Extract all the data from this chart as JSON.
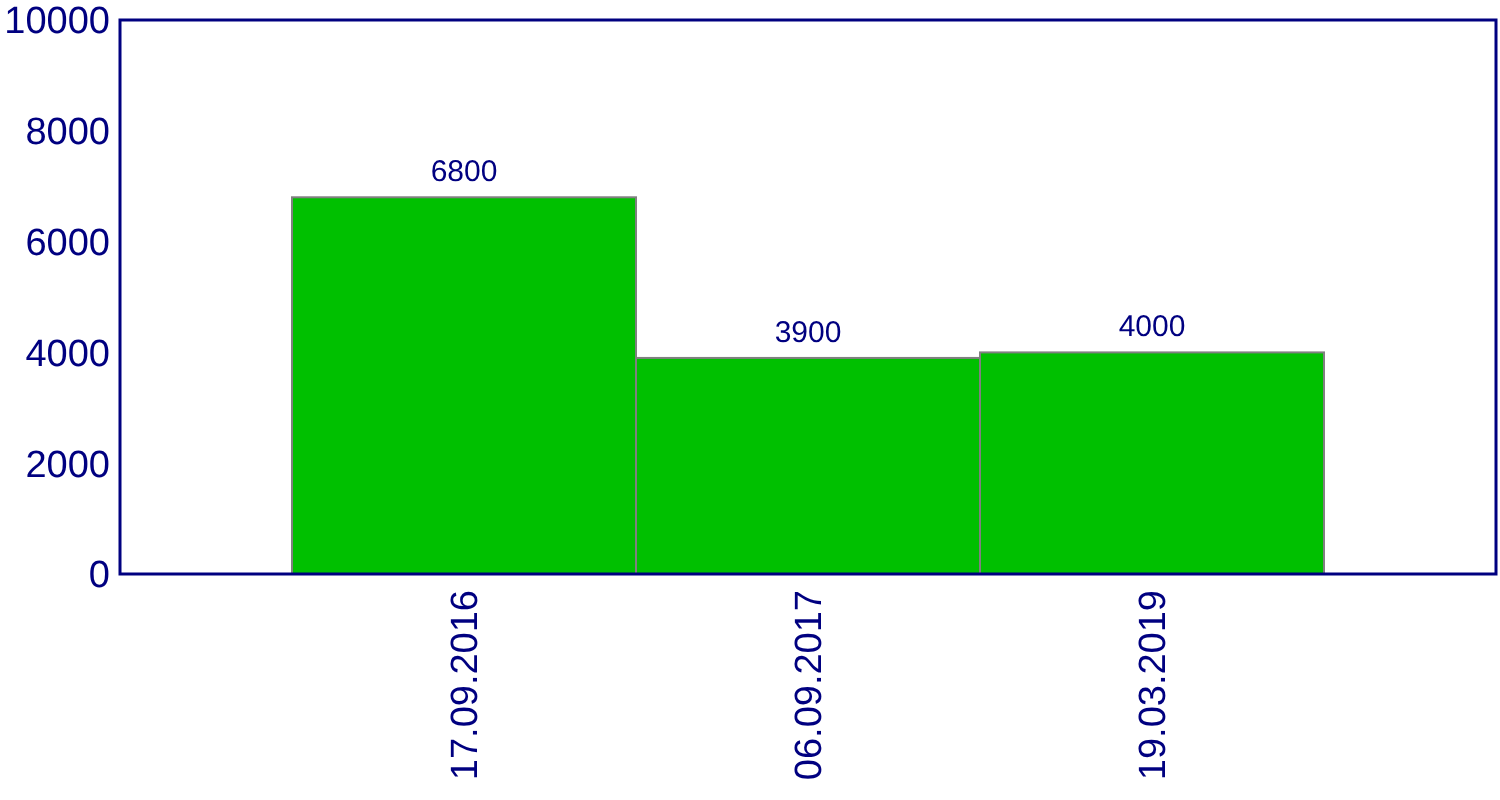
{
  "chart_data": {
    "type": "bar",
    "categories": [
      "17.09.2016",
      "06.09.2017",
      "19.03.2019"
    ],
    "values": [
      6800,
      3900,
      4000
    ],
    "color": "#00c000",
    "ylim": [
      0,
      10000
    ],
    "yticks": [
      0,
      2000,
      4000,
      6000,
      8000,
      10000
    ],
    "data_labels": true
  }
}
